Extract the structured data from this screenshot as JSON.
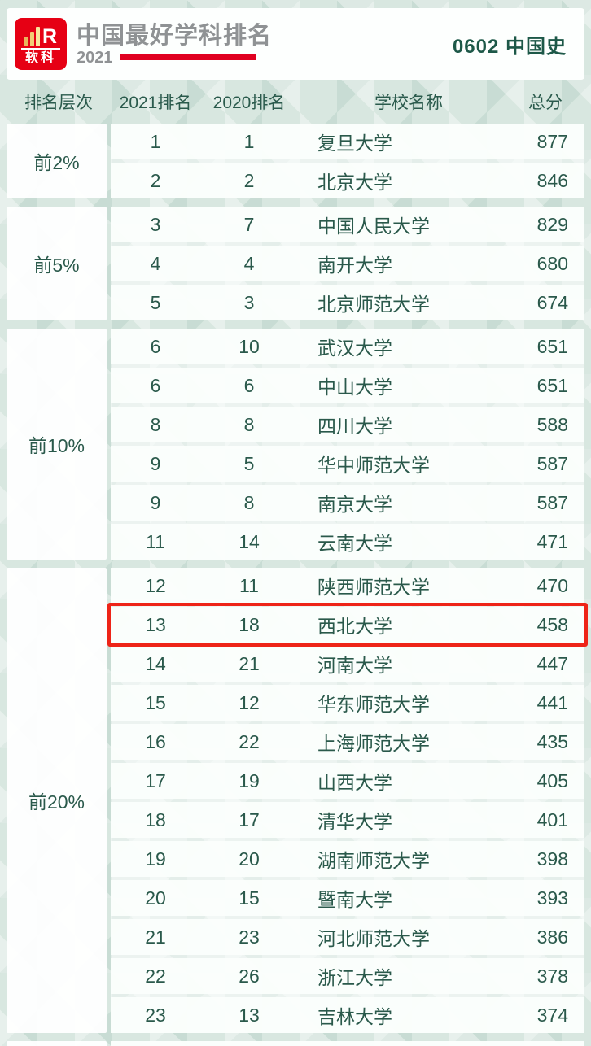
{
  "header": {
    "logo": {
      "brand": "软科",
      "letter": "R"
    },
    "title": "中国最好学科排名",
    "year": "2021",
    "subject": "0602 中国史"
  },
  "columns": {
    "tier": "排名层次",
    "rank2021": "2021排名",
    "rank2020": "2020排名",
    "school": "学校名称",
    "score": "总分"
  },
  "groups": [
    {
      "tier": "前2%",
      "rows": [
        {
          "rank2021": "1",
          "rank2020": "1",
          "school": "复旦大学",
          "score": "877"
        },
        {
          "rank2021": "2",
          "rank2020": "2",
          "school": "北京大学",
          "score": "846"
        }
      ]
    },
    {
      "tier": "前5%",
      "rows": [
        {
          "rank2021": "3",
          "rank2020": "7",
          "school": "中国人民大学",
          "score": "829"
        },
        {
          "rank2021": "4",
          "rank2020": "4",
          "school": "南开大学",
          "score": "680"
        },
        {
          "rank2021": "5",
          "rank2020": "3",
          "school": "北京师范大学",
          "score": "674"
        }
      ]
    },
    {
      "tier": "前10%",
      "rows": [
        {
          "rank2021": "6",
          "rank2020": "10",
          "school": "武汉大学",
          "score": "651"
        },
        {
          "rank2021": "6",
          "rank2020": "6",
          "school": "中山大学",
          "score": "651"
        },
        {
          "rank2021": "8",
          "rank2020": "8",
          "school": "四川大学",
          "score": "588"
        },
        {
          "rank2021": "9",
          "rank2020": "5",
          "school": "华中师范大学",
          "score": "587"
        },
        {
          "rank2021": "9",
          "rank2020": "8",
          "school": "南京大学",
          "score": "587"
        },
        {
          "rank2021": "11",
          "rank2020": "14",
          "school": "云南大学",
          "score": "471"
        }
      ]
    },
    {
      "tier": "前20%",
      "rows": [
        {
          "rank2021": "12",
          "rank2020": "11",
          "school": "陕西师范大学",
          "score": "470"
        },
        {
          "rank2021": "13",
          "rank2020": "18",
          "school": "西北大学",
          "score": "458",
          "highlighted": true
        },
        {
          "rank2021": "14",
          "rank2020": "21",
          "school": "河南大学",
          "score": "447"
        },
        {
          "rank2021": "15",
          "rank2020": "12",
          "school": "华东师范大学",
          "score": "441"
        },
        {
          "rank2021": "16",
          "rank2020": "22",
          "school": "上海师范大学",
          "score": "435"
        },
        {
          "rank2021": "17",
          "rank2020": "19",
          "school": "山西大学",
          "score": "405"
        },
        {
          "rank2021": "18",
          "rank2020": "17",
          "school": "清华大学",
          "score": "401"
        },
        {
          "rank2021": "19",
          "rank2020": "20",
          "school": "湖南师范大学",
          "score": "398"
        },
        {
          "rank2021": "20",
          "rank2020": "15",
          "school": "暨南大学",
          "score": "393"
        },
        {
          "rank2021": "21",
          "rank2020": "23",
          "school": "河北师范大学",
          "score": "386"
        },
        {
          "rank2021": "22",
          "rank2020": "26",
          "school": "浙江大学",
          "score": "378"
        },
        {
          "rank2021": "23",
          "rank2020": "13",
          "school": "吉林大学",
          "score": "374"
        }
      ]
    }
  ],
  "highlight": {
    "school": "西北大学"
  },
  "colors": {
    "logo_red": "#e60014",
    "accent_red": "#e00020",
    "highlight_red": "#ee2418",
    "text_green": "#2a594b",
    "subject_green": "#1d5848",
    "title_gray": "#8f9294",
    "background_mint": "#d8e7e0"
  }
}
